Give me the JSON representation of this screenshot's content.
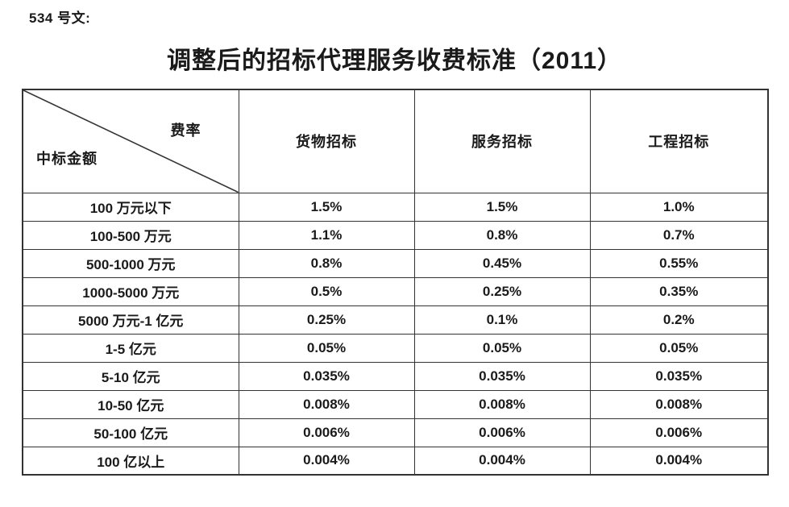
{
  "document": {
    "doc_ref": "534 号文:",
    "title": "调整后的招标代理服务收费标准（2011）"
  },
  "table": {
    "corner": {
      "top_label": "费率",
      "bottom_label": "中标金额"
    },
    "columns": [
      "货物招标",
      "服务招标",
      "工程招标"
    ],
    "rows": [
      {
        "label": "100 万元以下",
        "values": [
          "1.5%",
          "1.5%",
          "1.0%"
        ]
      },
      {
        "label": "100-500 万元",
        "values": [
          "1.1%",
          "0.8%",
          "0.7%"
        ]
      },
      {
        "label": "500-1000 万元",
        "values": [
          "0.8%",
          "0.45%",
          "0.55%"
        ]
      },
      {
        "label": "1000-5000 万元",
        "values": [
          "0.5%",
          "0.25%",
          "0.35%"
        ]
      },
      {
        "label": "5000 万元-1 亿元",
        "values": [
          "0.25%",
          "0.1%",
          "0.2%"
        ]
      },
      {
        "label": "1-5 亿元",
        "values": [
          "0.05%",
          "0.05%",
          "0.05%"
        ]
      },
      {
        "label": "5-10 亿元",
        "values": [
          "0.035%",
          "0.035%",
          "0.035%"
        ]
      },
      {
        "label": "10-50 亿元",
        "values": [
          "0.008%",
          "0.008%",
          "0.008%"
        ]
      },
      {
        "label": "50-100 亿元",
        "values": [
          "0.006%",
          "0.006%",
          "0.006%"
        ]
      },
      {
        "label": "100 亿以上",
        "values": [
          "0.004%",
          "0.004%",
          "0.004%"
        ]
      }
    ]
  },
  "colors": {
    "border": "#333333",
    "text": "#1a1a1a",
    "background": "#ffffff"
  }
}
